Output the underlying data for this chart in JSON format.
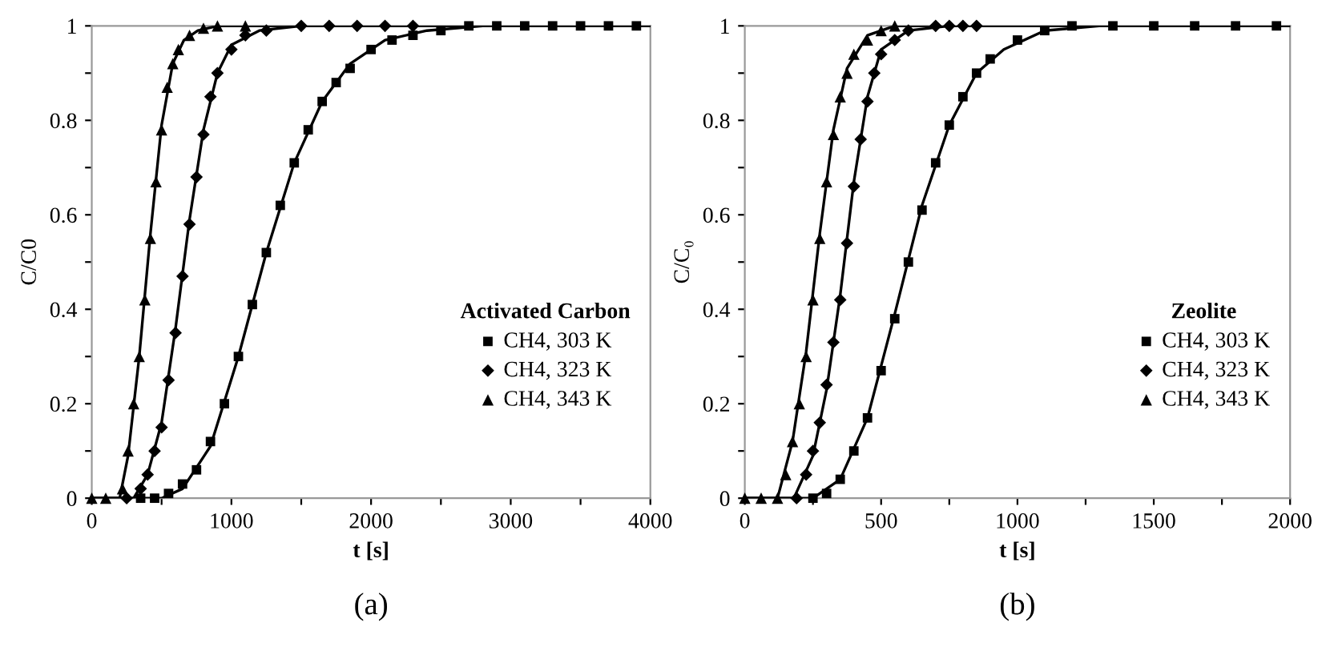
{
  "chart_data": [
    {
      "type": "scatter",
      "xlabel": "t [s]",
      "ylabel": "C/C0",
      "legend_title": "Activated Carbon",
      "legend": "right",
      "annotations": [
        "(a)"
      ],
      "xlim": [
        0,
        4000
      ],
      "ylim": [
        0,
        1
      ],
      "xticks": [
        0,
        {
          "value": 500,
          "label": null
        },
        1000,
        {
          "value": 1500,
          "label": null
        },
        2000,
        {
          "value": 2500,
          "label": null
        },
        3000,
        {
          "value": 3500,
          "label": null
        },
        4000
      ],
      "yticks": [
        0,
        {
          "value": 0.1,
          "label": null
        },
        0.2,
        {
          "value": 0.3,
          "label": null
        },
        0.4,
        {
          "value": 0.5,
          "label": null
        },
        0.6,
        {
          "value": 0.7,
          "label": null
        },
        0.8,
        {
          "value": 0.9,
          "label": null
        },
        1
      ],
      "series": [
        {
          "name": "CH4, 303 K",
          "marker": "square",
          "color": "#000000",
          "x": [
            350,
            450,
            550,
            650,
            750,
            850,
            950,
            1050,
            1150,
            1250,
            1350,
            1450,
            1550,
            1650,
            1750,
            1850,
            2000,
            2150,
            2300,
            2500,
            2700,
            2900,
            3100,
            3300,
            3500,
            3700,
            3900
          ],
          "values": [
            0,
            0,
            0.01,
            0.03,
            0.06,
            0.12,
            0.2,
            0.3,
            0.41,
            0.52,
            0.62,
            0.71,
            0.78,
            0.84,
            0.88,
            0.91,
            0.95,
            0.97,
            0.98,
            0.99,
            1,
            1,
            1,
            1,
            1,
            1,
            1
          ]
        },
        {
          "name": "CH4, 323 K",
          "marker": "diamond",
          "color": "#000000",
          "x": [
            250,
            350,
            400,
            450,
            500,
            550,
            600,
            650,
            700,
            750,
            800,
            850,
            900,
            1000,
            1100,
            1250,
            1500,
            1700,
            1900,
            2100,
            2300
          ],
          "values": [
            0,
            0.02,
            0.05,
            0.1,
            0.15,
            0.25,
            0.35,
            0.47,
            0.58,
            0.68,
            0.77,
            0.85,
            0.9,
            0.95,
            0.98,
            0.99,
            1,
            1,
            1,
            1,
            1
          ]
        },
        {
          "name": "CH4, 343 K",
          "marker": "triangle",
          "color": "#000000",
          "x": [
            0,
            100,
            220,
            260,
            300,
            340,
            380,
            420,
            460,
            500,
            540,
            580,
            620,
            700,
            800,
            900,
            1100
          ],
          "values": [
            0,
            0,
            0.02,
            0.1,
            0.2,
            0.3,
            0.42,
            0.55,
            0.67,
            0.78,
            0.87,
            0.92,
            0.95,
            0.98,
            0.995,
            1,
            1
          ]
        },
        {
          "type": "line",
          "color": "#000000",
          "x": [
            0,
            500,
            650,
            850,
            1050,
            1250,
            1450,
            1650,
            1850,
            2100,
            2400,
            2800,
            4000
          ],
          "values": [
            0,
            0,
            0.02,
            0.11,
            0.3,
            0.52,
            0.71,
            0.84,
            0.92,
            0.97,
            0.99,
            1,
            1
          ]
        },
        {
          "type": "line",
          "color": "#000000",
          "x": [
            0,
            300,
            400,
            500,
            600,
            700,
            800,
            900,
            1000,
            1200,
            1500,
            4000
          ],
          "values": [
            0,
            0,
            0.05,
            0.16,
            0.36,
            0.59,
            0.78,
            0.9,
            0.96,
            0.99,
            1,
            1
          ]
        },
        {
          "type": "line",
          "color": "#000000",
          "x": [
            0,
            200,
            260,
            340,
            420,
            500,
            580,
            660,
            760,
            900,
            1200,
            4000
          ],
          "values": [
            0,
            0,
            0.09,
            0.3,
            0.56,
            0.79,
            0.92,
            0.97,
            0.99,
            1,
            1,
            1
          ]
        }
      ]
    },
    {
      "type": "scatter",
      "xlabel": "t [s]",
      "ylabel": "C/C₀",
      "legend_title": "Zeolite",
      "legend": "right",
      "annotations": [
        "(b)"
      ],
      "xlim": [
        0,
        2000
      ],
      "ylim": [
        0,
        1
      ],
      "xticks": [
        0,
        {
          "value": 250,
          "label": null
        },
        500,
        {
          "value": 750,
          "label": null
        },
        1000,
        {
          "value": 1250,
          "label": null
        },
        1500,
        {
          "value": 1750,
          "label": null
        },
        2000
      ],
      "yticks": [
        0,
        {
          "value": 0.1,
          "label": null
        },
        0.2,
        {
          "value": 0.3,
          "label": null
        },
        0.4,
        {
          "value": 0.5,
          "label": null
        },
        0.6,
        {
          "value": 0.7,
          "label": null
        },
        0.8,
        {
          "value": 0.9,
          "label": null
        },
        1
      ],
      "series": [
        {
          "name": "CH4, 303 K",
          "marker": "square",
          "color": "#000000",
          "x": [
            250,
            300,
            350,
            400,
            450,
            500,
            550,
            600,
            650,
            700,
            750,
            800,
            850,
            900,
            1000,
            1100,
            1200,
            1350,
            1500,
            1650,
            1800,
            1950
          ],
          "values": [
            0,
            0.01,
            0.04,
            0.1,
            0.17,
            0.27,
            0.38,
            0.5,
            0.61,
            0.71,
            0.79,
            0.85,
            0.9,
            0.93,
            0.97,
            0.99,
            1,
            1,
            1,
            1,
            1,
            1
          ]
        },
        {
          "name": "CH4, 323 K",
          "marker": "diamond",
          "color": "#000000",
          "x": [
            190,
            225,
            250,
            275,
            300,
            325,
            350,
            375,
            400,
            425,
            450,
            475,
            500,
            550,
            600,
            700,
            750,
            800,
            850
          ],
          "values": [
            0,
            0.05,
            0.1,
            0.16,
            0.24,
            0.33,
            0.42,
            0.54,
            0.66,
            0.76,
            0.84,
            0.9,
            0.94,
            0.97,
            0.99,
            1,
            1,
            1,
            1
          ]
        },
        {
          "name": "CH4, 343 K",
          "marker": "triangle",
          "color": "#000000",
          "x": [
            0,
            60,
            120,
            150,
            175,
            200,
            225,
            250,
            275,
            300,
            325,
            350,
            375,
            400,
            450,
            500,
            550
          ],
          "values": [
            0,
            0,
            0,
            0.05,
            0.12,
            0.2,
            0.3,
            0.42,
            0.55,
            0.67,
            0.77,
            0.85,
            0.9,
            0.94,
            0.97,
            0.99,
            1
          ]
        },
        {
          "type": "line",
          "color": "#000000",
          "x": [
            0,
            250,
            350,
            450,
            550,
            650,
            750,
            850,
            950,
            1100,
            1300,
            2000
          ],
          "values": [
            0,
            0,
            0.04,
            0.17,
            0.39,
            0.62,
            0.79,
            0.9,
            0.95,
            0.99,
            1,
            1
          ]
        },
        {
          "type": "line",
          "color": "#000000",
          "x": [
            0,
            180,
            250,
            300,
            350,
            400,
            450,
            500,
            600,
            750,
            2000
          ],
          "values": [
            0,
            0,
            0.09,
            0.23,
            0.43,
            0.67,
            0.85,
            0.95,
            0.99,
            1,
            1
          ]
        },
        {
          "type": "line",
          "color": "#000000",
          "x": [
            0,
            120,
            175,
            225,
            275,
            325,
            375,
            450,
            550,
            2000
          ],
          "values": [
            0,
            0,
            0.12,
            0.31,
            0.56,
            0.78,
            0.91,
            0.98,
            1,
            1
          ]
        }
      ]
    }
  ]
}
